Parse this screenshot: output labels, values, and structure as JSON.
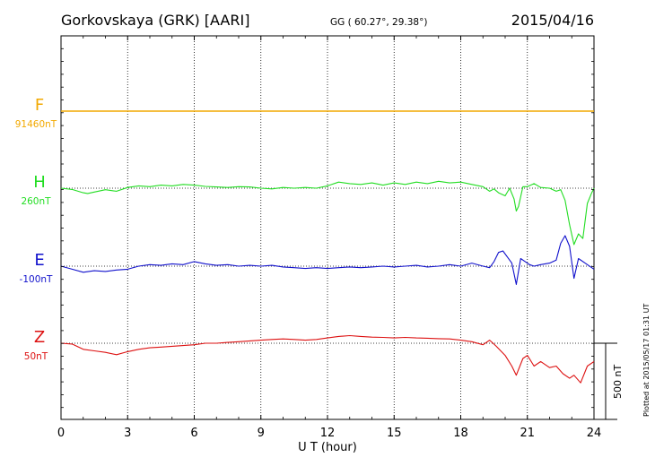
{
  "header": {
    "station": "Gorkovskaya (GRK)  [AARI]",
    "coords": "GG ( 60.27°,  29.38°)",
    "date": "2015/04/16"
  },
  "plotted_note": "Plotted at 2015/05/17 01:31  UT",
  "chart_data": {
    "type": "line",
    "title": "Gorkovskaya (GRK)  [AARI]",
    "xlabel": "U T (hour)",
    "xlim": [
      0,
      24
    ],
    "x_ticks": [
      0,
      3,
      6,
      9,
      12,
      15,
      18,
      21,
      24
    ],
    "x_tick_labels": [
      "0",
      "3",
      "6",
      "9",
      "12",
      "15",
      "18",
      "21",
      "24"
    ],
    "grid": true,
    "scale_bar": {
      "label": "500 nT",
      "value_nT": 500
    },
    "series": [
      {
        "name": "F",
        "baseline_label": "91460nT",
        "color": "#f2a900",
        "x": [
          0,
          24
        ],
        "y": [
          0,
          0
        ]
      },
      {
        "name": "H",
        "baseline_label": "260nT",
        "color": "#22dd22",
        "x": [
          0,
          0.5,
          1,
          1.2,
          1.5,
          2,
          2.5,
          3,
          3.5,
          4,
          4.5,
          5,
          5.5,
          6,
          6.5,
          7,
          7.5,
          8,
          8.5,
          9,
          9.5,
          10,
          10.5,
          11,
          11.5,
          12,
          12.5,
          13,
          13.5,
          14,
          14.5,
          15,
          15.5,
          16,
          16.5,
          17,
          17.5,
          18,
          18.5,
          19,
          19.3,
          19.5,
          19.7,
          20,
          20.2,
          20.4,
          20.5,
          20.6,
          20.8,
          21,
          21.3,
          21.6,
          22,
          22.3,
          22.5,
          22.7,
          22.9,
          23.1,
          23.3,
          23.5,
          23.7,
          23.9,
          24
        ],
        "y": [
          0,
          -8,
          -30,
          -35,
          -25,
          -10,
          -20,
          5,
          15,
          10,
          20,
          15,
          25,
          20,
          12,
          8,
          5,
          10,
          8,
          0,
          -5,
          5,
          0,
          5,
          0,
          15,
          40,
          30,
          25,
          35,
          20,
          35,
          25,
          40,
          30,
          45,
          35,
          40,
          25,
          10,
          -20,
          -5,
          -30,
          -50,
          0,
          -70,
          -150,
          -120,
          10,
          10,
          30,
          5,
          0,
          -20,
          -10,
          -80,
          -240,
          -370,
          -300,
          -330,
          -100,
          -30,
          0
        ]
      },
      {
        "name": "E",
        "baseline_label": "-100nT",
        "color": "#1111cc",
        "x": [
          0,
          0.5,
          1,
          1.5,
          2,
          2.5,
          3,
          3.5,
          4,
          4.5,
          5,
          5.5,
          6,
          6.5,
          7,
          7.5,
          8,
          8.5,
          9,
          9.5,
          10,
          10.5,
          11,
          11.5,
          12,
          12.5,
          13,
          13.5,
          14,
          14.5,
          15,
          15.5,
          16,
          16.5,
          17,
          17.5,
          18,
          18.5,
          19,
          19.3,
          19.5,
          19.7,
          19.9,
          20.1,
          20.3,
          20.5,
          20.7,
          20.9,
          21.1,
          21.3,
          21.6,
          22,
          22.3,
          22.5,
          22.7,
          22.9,
          23.1,
          23.3,
          23.6,
          24
        ],
        "y": [
          0,
          -20,
          -40,
          -30,
          -35,
          -25,
          -20,
          0,
          10,
          5,
          15,
          10,
          30,
          15,
          5,
          10,
          0,
          5,
          0,
          5,
          -5,
          -10,
          -15,
          -10,
          -15,
          -10,
          -5,
          -10,
          -5,
          0,
          -5,
          0,
          5,
          -5,
          0,
          10,
          0,
          20,
          0,
          -10,
          30,
          90,
          100,
          60,
          20,
          -120,
          50,
          30,
          10,
          0,
          10,
          20,
          40,
          150,
          200,
          130,
          -80,
          50,
          20,
          -20
        ]
      },
      {
        "name": "Z",
        "baseline_label": "50nT",
        "color": "#dd1111",
        "x": [
          0,
          0.5,
          1,
          1.5,
          2,
          2.5,
          3,
          3.5,
          4,
          4.5,
          5,
          5.5,
          6,
          6.5,
          7,
          7.5,
          8,
          8.5,
          9,
          9.5,
          10,
          10.5,
          11,
          11.5,
          12,
          12.5,
          13,
          13.5,
          14,
          14.5,
          15,
          15.5,
          16,
          16.5,
          17,
          17.5,
          18,
          18.5,
          19,
          19.3,
          19.6,
          20,
          20.3,
          20.5,
          20.8,
          21,
          21.3,
          21.6,
          22,
          22.3,
          22.6,
          22.9,
          23.1,
          23.4,
          23.7,
          24
        ],
        "y": [
          0,
          -5,
          -40,
          -50,
          -60,
          -75,
          -55,
          -40,
          -30,
          -25,
          -20,
          -15,
          -10,
          0,
          0,
          5,
          10,
          15,
          20,
          25,
          28,
          25,
          20,
          25,
          35,
          45,
          50,
          45,
          40,
          38,
          35,
          38,
          35,
          33,
          30,
          28,
          20,
          10,
          -10,
          20,
          -20,
          -80,
          -150,
          -210,
          -100,
          -80,
          -150,
          -120,
          -160,
          -150,
          -200,
          -230,
          -210,
          -260,
          -150,
          -120
        ]
      }
    ]
  }
}
